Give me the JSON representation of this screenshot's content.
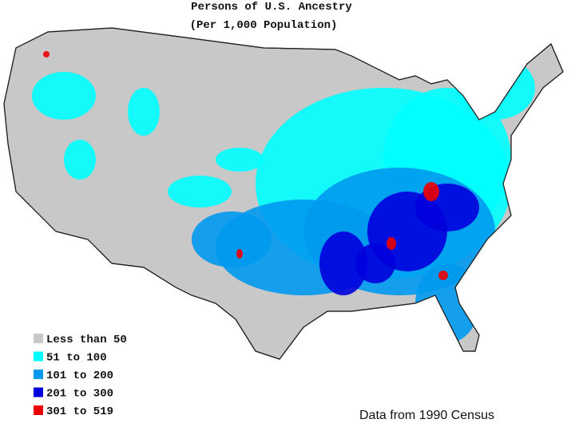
{
  "title": "Persons of U.S. Ancestry",
  "subtitle": "(Per 1,000 Population)",
  "legend": [
    {
      "label": "Less than 50",
      "color": "#c8c8c8"
    },
    {
      "label": "51 to 100",
      "color": "#00ffff"
    },
    {
      "label": "101 to 200",
      "color": "#0099ee"
    },
    {
      "label": "201 to 300",
      "color": "#0000dd"
    },
    {
      "label": "301 to 519",
      "color": "#ee0000"
    }
  ],
  "source": "Data from 1990 Census"
}
